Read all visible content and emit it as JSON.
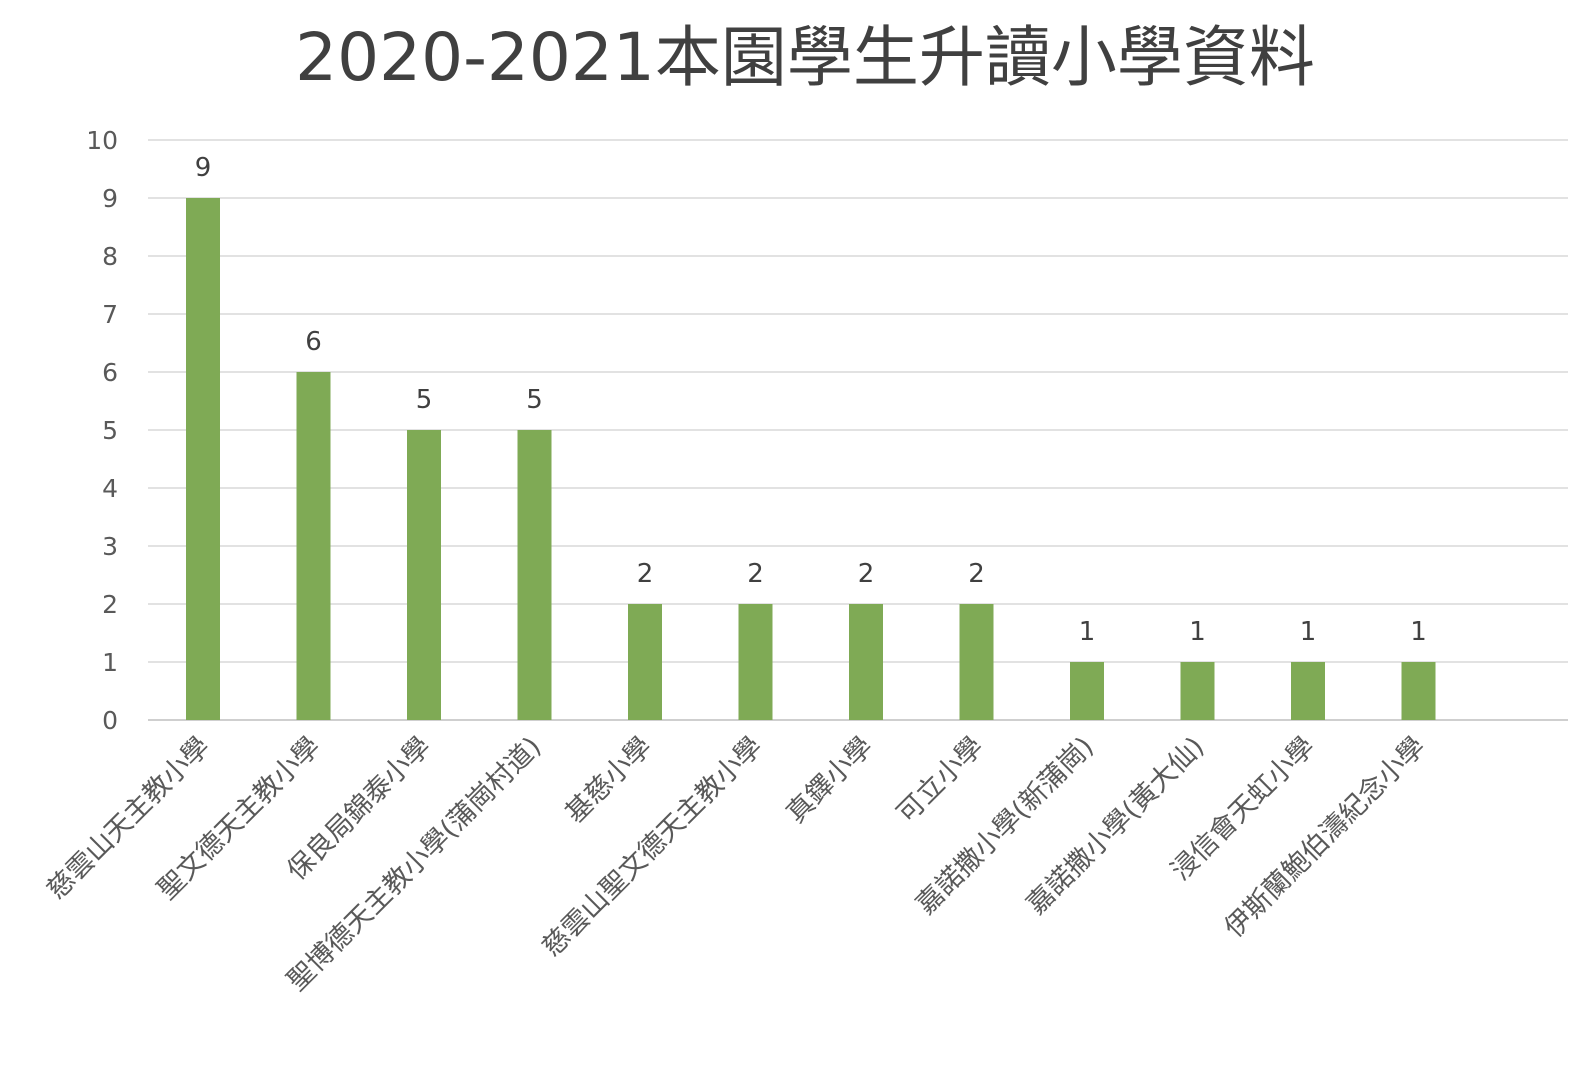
{
  "chart_data": {
    "type": "bar",
    "title": "2020-2021本園學生升讀小學資料",
    "xlabel": "",
    "ylabel": "",
    "ylim": [
      0,
      10
    ],
    "yticks": [
      0,
      1,
      2,
      3,
      4,
      5,
      6,
      7,
      8,
      9,
      10
    ],
    "grid": true,
    "legend": "none",
    "bar_color": "#7faa55",
    "categories": [
      "慈雲山天主教小學",
      "聖文德天主教小學",
      "保良局錦泰小學",
      "聖博德天主教小學(蒲崗村道)",
      "基慈小學",
      "慈雲山聖文德天主教小學",
      "真鐸小學",
      "可立小學",
      "嘉諾撒小學(新蒲崗)",
      "嘉諾撒小學(黃大仙)",
      "浸信會天虹小學",
      "伊斯蘭鮑伯濤紀念小學"
    ],
    "values": [
      9,
      6,
      5,
      5,
      2,
      2,
      2,
      2,
      1,
      1,
      1,
      1
    ]
  }
}
